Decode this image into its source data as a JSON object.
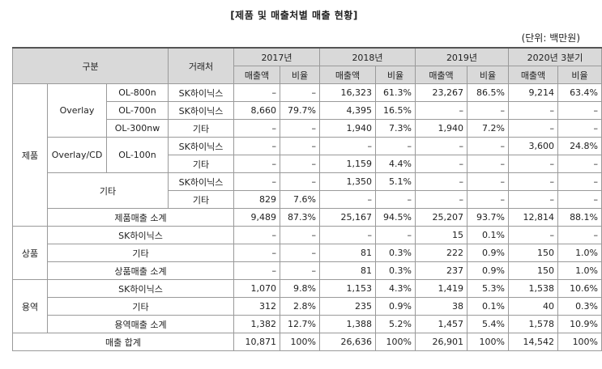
{
  "title": "[제품 및 매출처별 매출 현황]",
  "unit": "(단위: 백만원)",
  "header": {
    "category": "구분",
    "customer": "거래처",
    "years": [
      "2017년",
      "2018년",
      "2019년",
      "2020년 3분기"
    ],
    "sales": "매출액",
    "ratio": "비율"
  },
  "labels": {
    "product": "제품",
    "overlay": "Overlay",
    "overlay_cd": "Overlay/CD",
    "other": "기타",
    "ol800": "OL-800n",
    "ol700": "OL-700n",
    "ol300": "OL-300nw",
    "ol100": "OL-100n",
    "skhynix": "SK하이닉스",
    "product_subtotal": "제품매출 소계",
    "goods": "상품",
    "goods_subtotal": "상품매출 소계",
    "service": "용역",
    "service_subtotal": "용역매출 소계",
    "total": "매출 합계"
  },
  "rows": {
    "ol800_sk": [
      "–",
      "–",
      "16,323",
      "61.3%",
      "23,267",
      "86.5%",
      "9,214",
      "63.4%"
    ],
    "ol700_sk": [
      "8,660",
      "79.7%",
      "4,395",
      "16.5%",
      "–",
      "–",
      "–",
      "–"
    ],
    "ol300_etc": [
      "–",
      "–",
      "1,940",
      "7.3%",
      "1,940",
      "7.2%",
      "–",
      "–"
    ],
    "ol100_sk": [
      "–",
      "–",
      "–",
      "–",
      "–",
      "–",
      "3,600",
      "24.8%"
    ],
    "ol100_etc": [
      "–",
      "–",
      "1,159",
      "4.4%",
      "–",
      "–",
      "–",
      "–"
    ],
    "other_sk": [
      "–",
      "–",
      "1,350",
      "5.1%",
      "–",
      "–",
      "–",
      "–"
    ],
    "other_etc": [
      "829",
      "7.6%",
      "–",
      "–",
      "–",
      "–",
      "–",
      "–"
    ],
    "product_sub": [
      "9,489",
      "87.3%",
      "25,167",
      "94.5%",
      "25,207",
      "93.7%",
      "12,814",
      "88.1%"
    ],
    "goods_sk": [
      "–",
      "–",
      "–",
      "–",
      "15",
      "0.1%",
      "–",
      "–"
    ],
    "goods_etc": [
      "–",
      "–",
      "81",
      "0.3%",
      "222",
      "0.9%",
      "150",
      "1.0%"
    ],
    "goods_sub": [
      "–",
      "–",
      "81",
      "0.3%",
      "237",
      "0.9%",
      "150",
      "1.0%"
    ],
    "service_sk": [
      "1,070",
      "9.8%",
      "1,153",
      "4.3%",
      "1,419",
      "5.3%",
      "1,538",
      "10.6%"
    ],
    "service_etc": [
      "312",
      "2.8%",
      "235",
      "0.9%",
      "38",
      "0.1%",
      "40",
      "0.3%"
    ],
    "service_sub": [
      "1,382",
      "12.7%",
      "1,388",
      "5.2%",
      "1,457",
      "5.4%",
      "1,578",
      "10.9%"
    ],
    "total": [
      "10,871",
      "100%",
      "26,636",
      "100%",
      "26,901",
      "100%",
      "14,542",
      "100%"
    ]
  }
}
